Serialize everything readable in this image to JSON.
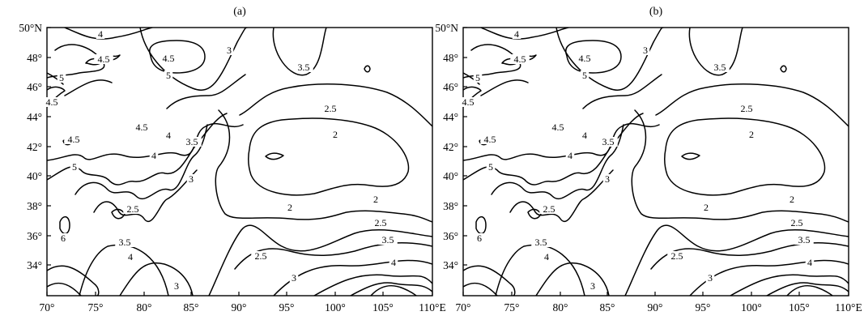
{
  "panels": [
    {
      "title": "(a)",
      "x_ticks": [
        "70°",
        "75°",
        "80°",
        "85°",
        "90°",
        "95°",
        "100°",
        "105°",
        "110°E"
      ],
      "y_ticks": [
        "50°N",
        "48°",
        "46°",
        "44°",
        "42°",
        "40°",
        "38°",
        "36°",
        "34°"
      ],
      "contour_labels": [
        "4",
        "4.5",
        "5",
        "4.5",
        "4.5",
        "5",
        "3",
        "3.5",
        "4.5",
        "4",
        "2.5",
        "2",
        "4.5",
        "5",
        "4",
        "3.5",
        "3",
        "2.5",
        "2",
        "2",
        "2.5",
        "6",
        "3.5",
        "4",
        "2.5",
        "3",
        "3",
        "3.5",
        "4"
      ]
    },
    {
      "title": "(b)",
      "x_ticks": [
        "70°",
        "75°",
        "80°",
        "85°",
        "90°",
        "95°",
        "100°",
        "105°",
        "110°E"
      ],
      "y_ticks": [
        "50°N",
        "48°",
        "46°",
        "44°",
        "42°",
        "40°",
        "38°",
        "36°",
        "34°"
      ],
      "contour_labels": [
        "4",
        "4.5",
        "5",
        "4.5",
        "4.5",
        "5",
        "3",
        "3.5",
        "4.5",
        "4",
        "2.5",
        "2",
        "4.5",
        "5",
        "4",
        "3.5",
        "3",
        "2.5",
        "2",
        "2",
        "2.5",
        "6",
        "3.5",
        "4",
        "2.5",
        "3",
        "3",
        "3.5",
        "4"
      ]
    }
  ]
}
